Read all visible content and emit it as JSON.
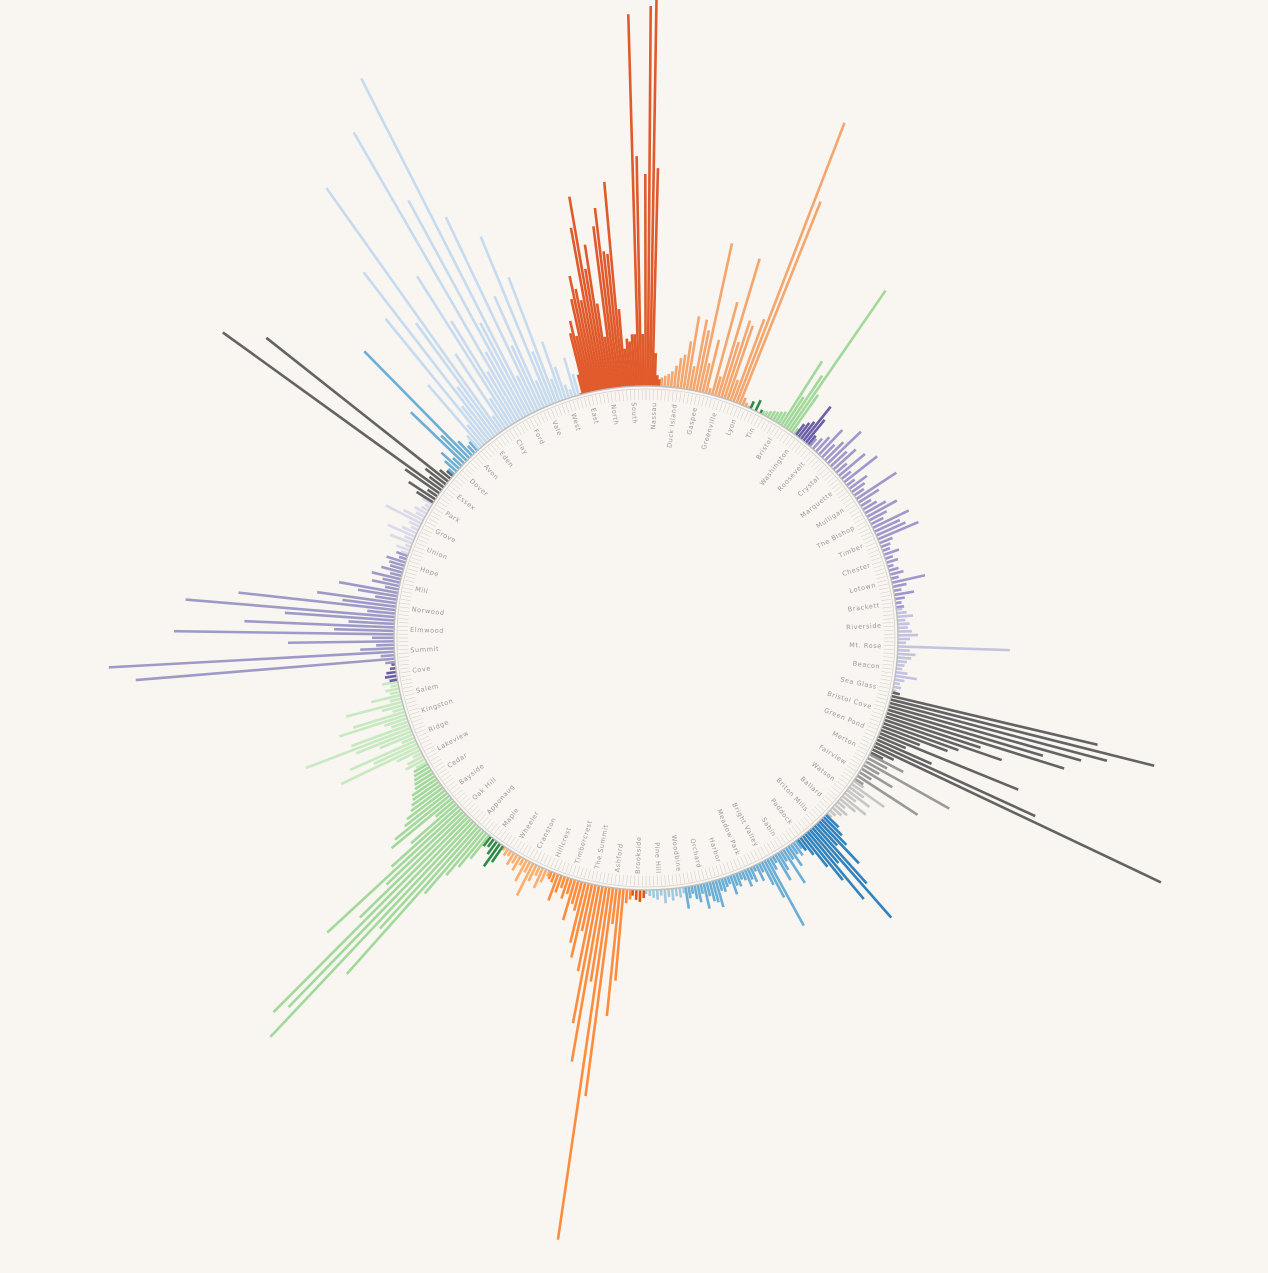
{
  "background_color": "#f9f5f1",
  "ring_color": "#bdbdbd",
  "label_color": "#9a9a9a",
  "chart_data": {
    "type": "radial-bar",
    "title": "",
    "legend": "none",
    "grid": false,
    "angle_start_deg": 0,
    "angle_direction": "clockwise-from-north",
    "baseline_value": 0,
    "groups": [
      {
        "color": "#e05a2b",
        "start_deg": -15.0,
        "end_deg": 3.0,
        "values": [
          0,
          20,
          62,
          74,
          58,
          95,
          118,
          104,
          92,
          165,
          196,
          122,
          146,
          86,
          52,
          163,
          181,
          137,
          134,
          206,
          78,
          38,
          48,
          45,
          52,
          52,
          372,
          230,
          52,
          212,
          380,
          396,
          218,
          33,
          11,
          7
        ]
      },
      {
        "color": "#f4a66d",
        "start_deg": 3.5,
        "end_deg": 24.0,
        "values": [
          9,
          11,
          13,
          16,
          22,
          30,
          34,
          48,
          74,
          24,
          72,
          62,
          152,
          30,
          55,
          6,
          96,
          20,
          144,
          58,
          82,
          78,
          22,
          88,
          300,
          218,
          8,
          4,
          2
        ]
      },
      {
        "color": "#2e8b4a",
        "start_deg": 24.5,
        "end_deg": 27.0,
        "values": [
          8,
          12,
          4
        ]
      },
      {
        "color": "#a2d99a",
        "start_deg": 27.5,
        "end_deg": 36.0,
        "values": [
          4,
          5,
          7,
          9,
          10,
          12,
          14,
          76,
          36,
          64,
          170,
          46,
          7
        ]
      },
      {
        "color": "#6a5fa8",
        "start_deg": 36.5,
        "end_deg": 40.0,
        "values": [
          14,
          18,
          22,
          44,
          30,
          12
        ]
      },
      {
        "color": "#9f98cc",
        "start_deg": 40.5,
        "end_deg": 83.0,
        "values": [
          10,
          14,
          20,
          34,
          18,
          26,
          46,
          22,
          30,
          14,
          34,
          12,
          42,
          10,
          22,
          16,
          12,
          48,
          24,
          12,
          16,
          24,
          34,
          20,
          14,
          40,
          28,
          32,
          44,
          14,
          10,
          8,
          16,
          8,
          12,
          6,
          10,
          14,
          8,
          34,
          14,
          8,
          20,
          10,
          6,
          8
        ]
      },
      {
        "color": "#c3c2e1",
        "start_deg": 83.5,
        "end_deg": 102.0,
        "values": [
          6,
          10,
          16,
          8,
          12,
          10,
          14,
          20,
          12,
          8,
          112,
          12,
          18,
          14,
          10,
          8,
          6,
          12,
          22,
          10,
          6,
          8,
          4
        ]
      },
      {
        "color": "#636363",
        "start_deg": 102.5,
        "end_deg": 117.0,
        "values": [
          8,
          212,
          272,
          225,
          200,
          162,
          186,
          100,
          124,
          80,
          70,
          42,
          150,
          30,
          60,
          176,
          318,
          24,
          14
        ]
      },
      {
        "color": "#999999",
        "start_deg": 117.5,
        "end_deg": 124.0,
        "values": [
          38,
          22,
          96,
          18,
          36,
          14,
          72,
          10
        ]
      },
      {
        "color": "#c6c6c6",
        "start_deg": 124.5,
        "end_deg": 134.0,
        "values": [
          12,
          40,
          18,
          28,
          14,
          30,
          20,
          10,
          16,
          12,
          8,
          6
        ]
      },
      {
        "color": "#3182bd",
        "start_deg": 134.5,
        "end_deg": 143.0,
        "values": [
          18,
          26,
          36,
          58,
          30,
          78,
          120,
          44,
          88,
          60,
          40,
          22,
          14
        ]
      },
      {
        "color": "#6baed6",
        "start_deg": 143.5,
        "end_deg": 171.0,
        "values": [
          10,
          16,
          12,
          24,
          14,
          40,
          12,
          20,
          30,
          8,
          14,
          76,
          42,
          26,
          10,
          18,
          6,
          16,
          12,
          18,
          10,
          8,
          14,
          12,
          20,
          8,
          10,
          14,
          12,
          28,
          22,
          20,
          14,
          26,
          10,
          18,
          14,
          8,
          12,
          22
        ]
      },
      {
        "color": "#9ecae1",
        "start_deg": 171.5,
        "end_deg": 180.0,
        "values": [
          6,
          10,
          8,
          12,
          8,
          14,
          6,
          10,
          8,
          6,
          4
        ]
      },
      {
        "color": "#e6550d",
        "start_deg": 180.5,
        "end_deg": 183.0,
        "values": [
          8,
          12,
          10,
          6
        ]
      },
      {
        "color": "#fd8d3c",
        "start_deg": 183.5,
        "end_deg": 202.0,
        "values": [
          10,
          14,
          92,
          128,
          36,
          210,
          356,
          96,
          178,
          140,
          88,
          48,
          76,
          62,
          30,
          24,
          42,
          16,
          22,
          12,
          18,
          28,
          10,
          8
        ]
      },
      {
        "color": "#fdae6b",
        "start_deg": 202.5,
        "end_deg": 214.0,
        "values": [
          6,
          14,
          22,
          10,
          18,
          36,
          12,
          24,
          8,
          16,
          10,
          14,
          6,
          8,
          4
        ]
      },
      {
        "color": "#2e8b4a",
        "start_deg": 214.5,
        "end_deg": 218.0,
        "values": [
          20,
          28,
          16,
          10,
          12
        ]
      },
      {
        "color": "#a1d99b",
        "start_deg": 218.5,
        "end_deg": 240.0,
        "values": [
          30,
          44,
          58,
          86,
          198,
          142,
          296,
          262,
          276,
          148,
          106,
          182,
          90,
          60,
          24,
          78,
          70,
          54,
          48,
          40,
          36,
          32,
          30,
          24,
          22,
          20,
          18,
          16
        ]
      },
      {
        "color": "#c7e9c0",
        "start_deg": 240.5,
        "end_deg": 260.0,
        "values": [
          12,
          22,
          18,
          10,
          26,
          86,
          48,
          72,
          14,
          36,
          60,
          112,
          62,
          18,
          24,
          70,
          54,
          12,
          22,
          58,
          12,
          30,
          10,
          14,
          8,
          16
        ]
      },
      {
        "color": "#6a5fa8",
        "start_deg": 260.5,
        "end_deg": 264.0,
        "values": [
          8,
          12,
          10,
          6,
          4
        ]
      },
      {
        "color": "#9e9ac8",
        "start_deg": 264.5,
        "end_deg": 289.0,
        "values": [
          10,
          260,
          14,
          286,
          34,
          18,
          106,
          22,
          220,
          60,
          150,
          46,
          110,
          210,
          28,
          158,
          54,
          80,
          22,
          40,
          60,
          14,
          28,
          18,
          30,
          12,
          22,
          14,
          16,
          20,
          8,
          12
        ]
      },
      {
        "color": "#dadaeb",
        "start_deg": 289.5,
        "end_deg": 302.0,
        "values": [
          8,
          14,
          6,
          24,
          10,
          30,
          16,
          8,
          12,
          40,
          22,
          10,
          14,
          8,
          6,
          12
        ]
      },
      {
        "color": "#636363",
        "start_deg": 302.5,
        "end_deg": 310.0,
        "values": [
          20,
          32,
          12,
          42,
          270,
          18,
          26,
          232,
          14,
          8
        ]
      },
      {
        "color": "#6baed6",
        "start_deg": 310.5,
        "end_deg": 318.0,
        "values": [
          8,
          16,
          24,
          12,
          74,
          36,
          150,
          20,
          10,
          12
        ]
      },
      {
        "color": "#c6dbef",
        "start_deg": 318.5,
        "end_deg": 344.5,
        "values": [
          18,
          82,
          26,
          160,
          44,
          210,
          62,
          138,
          300,
          18,
          90,
          34,
          176,
          120,
          58,
          332,
          76,
          246,
          104,
          376,
          40,
          214,
          70,
          122,
          28,
          182,
          56,
          134,
          24,
          62,
          34,
          14,
          8,
          40,
          22
        ]
      }
    ],
    "labels": [
      "Nassau",
      "Duck Island",
      "Gaspee",
      "Greenville",
      "Lyon",
      "Tin",
      "Bristol",
      "Washington",
      "Roosevelt",
      "Crystal",
      "Marquette",
      "Mulligan",
      "The Bishop",
      "Timber",
      "Chester",
      "Lotown",
      "Brackett",
      "Riverside",
      "Mt. Rose",
      "Beacon",
      "Sea Glass",
      "Bristol Cove",
      "Green Pond",
      "Merton",
      "Fairview",
      "Watson",
      "Ballard",
      "Briton Mills",
      "Paddock",
      "Sabin",
      "Bright Valley",
      "Meadow Park",
      "Harbor",
      "Orchard",
      "Woodbine",
      "Pine Hill",
      "Brookside",
      "Ashford",
      "The Summit",
      "Timbercrest",
      "Hillcrest",
      "Cranston",
      "Wheeler",
      "Maple",
      "Apponaug",
      "Oak Hill",
      "Bayside",
      "Cedar",
      "Lakeview",
      "Ridge",
      "Kingston",
      "Salem",
      "Cove",
      "Summit",
      "Elmwood",
      "Norwood",
      "Mill",
      "Hope",
      "Union",
      "Grove",
      "Park",
      "Essex",
      "Dover",
      "Avon",
      "Eden",
      "Clay",
      "Ford",
      "Vale",
      "West",
      "East",
      "North",
      "South"
    ]
  }
}
